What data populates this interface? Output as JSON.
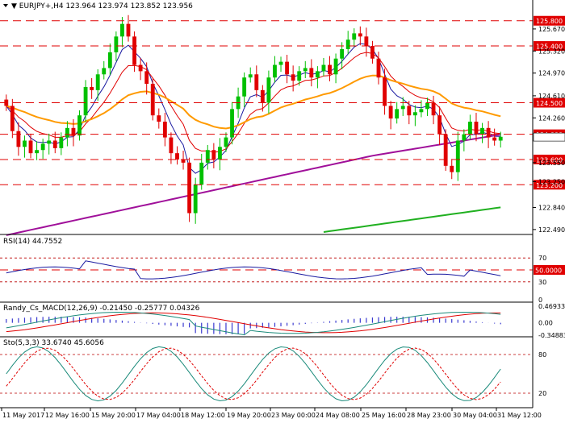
{
  "main": {
    "header": "▼ EURJPY+,H4 123.964 123.974 123.852 123.956",
    "ticks": [
      "125.670",
      "125.320",
      "124.970",
      "124.610",
      "124.260",
      "123.550",
      "123.250",
      "122.840",
      "122.490"
    ],
    "levels": [
      {
        "label": "125.800",
        "value": 125.8
      },
      {
        "label": "125.400",
        "value": 125.4
      },
      {
        "label": "124.500",
        "value": 124.5
      },
      {
        "label": "124.000",
        "value": 124.0
      },
      {
        "label": "123.600",
        "value": 123.6
      },
      {
        "label": "123.200",
        "value": 123.2
      }
    ],
    "current_price": 123.956,
    "range": [
      122.45,
      125.95
    ]
  },
  "rsi": {
    "header": "RSI(14) 44.7552",
    "ticks": [
      "70",
      "30",
      "0"
    ],
    "level_label": "50.0000"
  },
  "macd": {
    "header": "Randy_Cs_MACD(12,26,9) -0.21450 -0.25777 0.04326",
    "ticks": [
      "0.46933",
      "0.00",
      "-0.34883"
    ]
  },
  "stoch": {
    "header": "Sto(5,3,3) 33.6740 45.6056",
    "ticks": [
      "80",
      "20"
    ]
  },
  "time_axis": [
    "11 May 2017",
    "12 May 16:00",
    "15 May 20:00",
    "17 May 04:00",
    "18 May 12:00",
    "19 May 20:00",
    "23 May 00:00",
    "24 May 08:00",
    "25 May 16:00",
    "28 May 23:00",
    "30 May 04:00",
    "31 May 12:00"
  ],
  "colors": {
    "bull": "#00c000",
    "bear": "#e00000",
    "level": "#e00000",
    "ma_fast": "#1a1aa0",
    "ma_mid": "#e00000",
    "ma_slow": "#ff9a00",
    "ma_200": "#a0109a",
    "ma_long": "#20b020",
    "rsi": "#1a1aa0",
    "macd_hist": "#3a3ad0",
    "macd_signal": "#e00000",
    "macd_line": "#1a8a7a"
  }
}
